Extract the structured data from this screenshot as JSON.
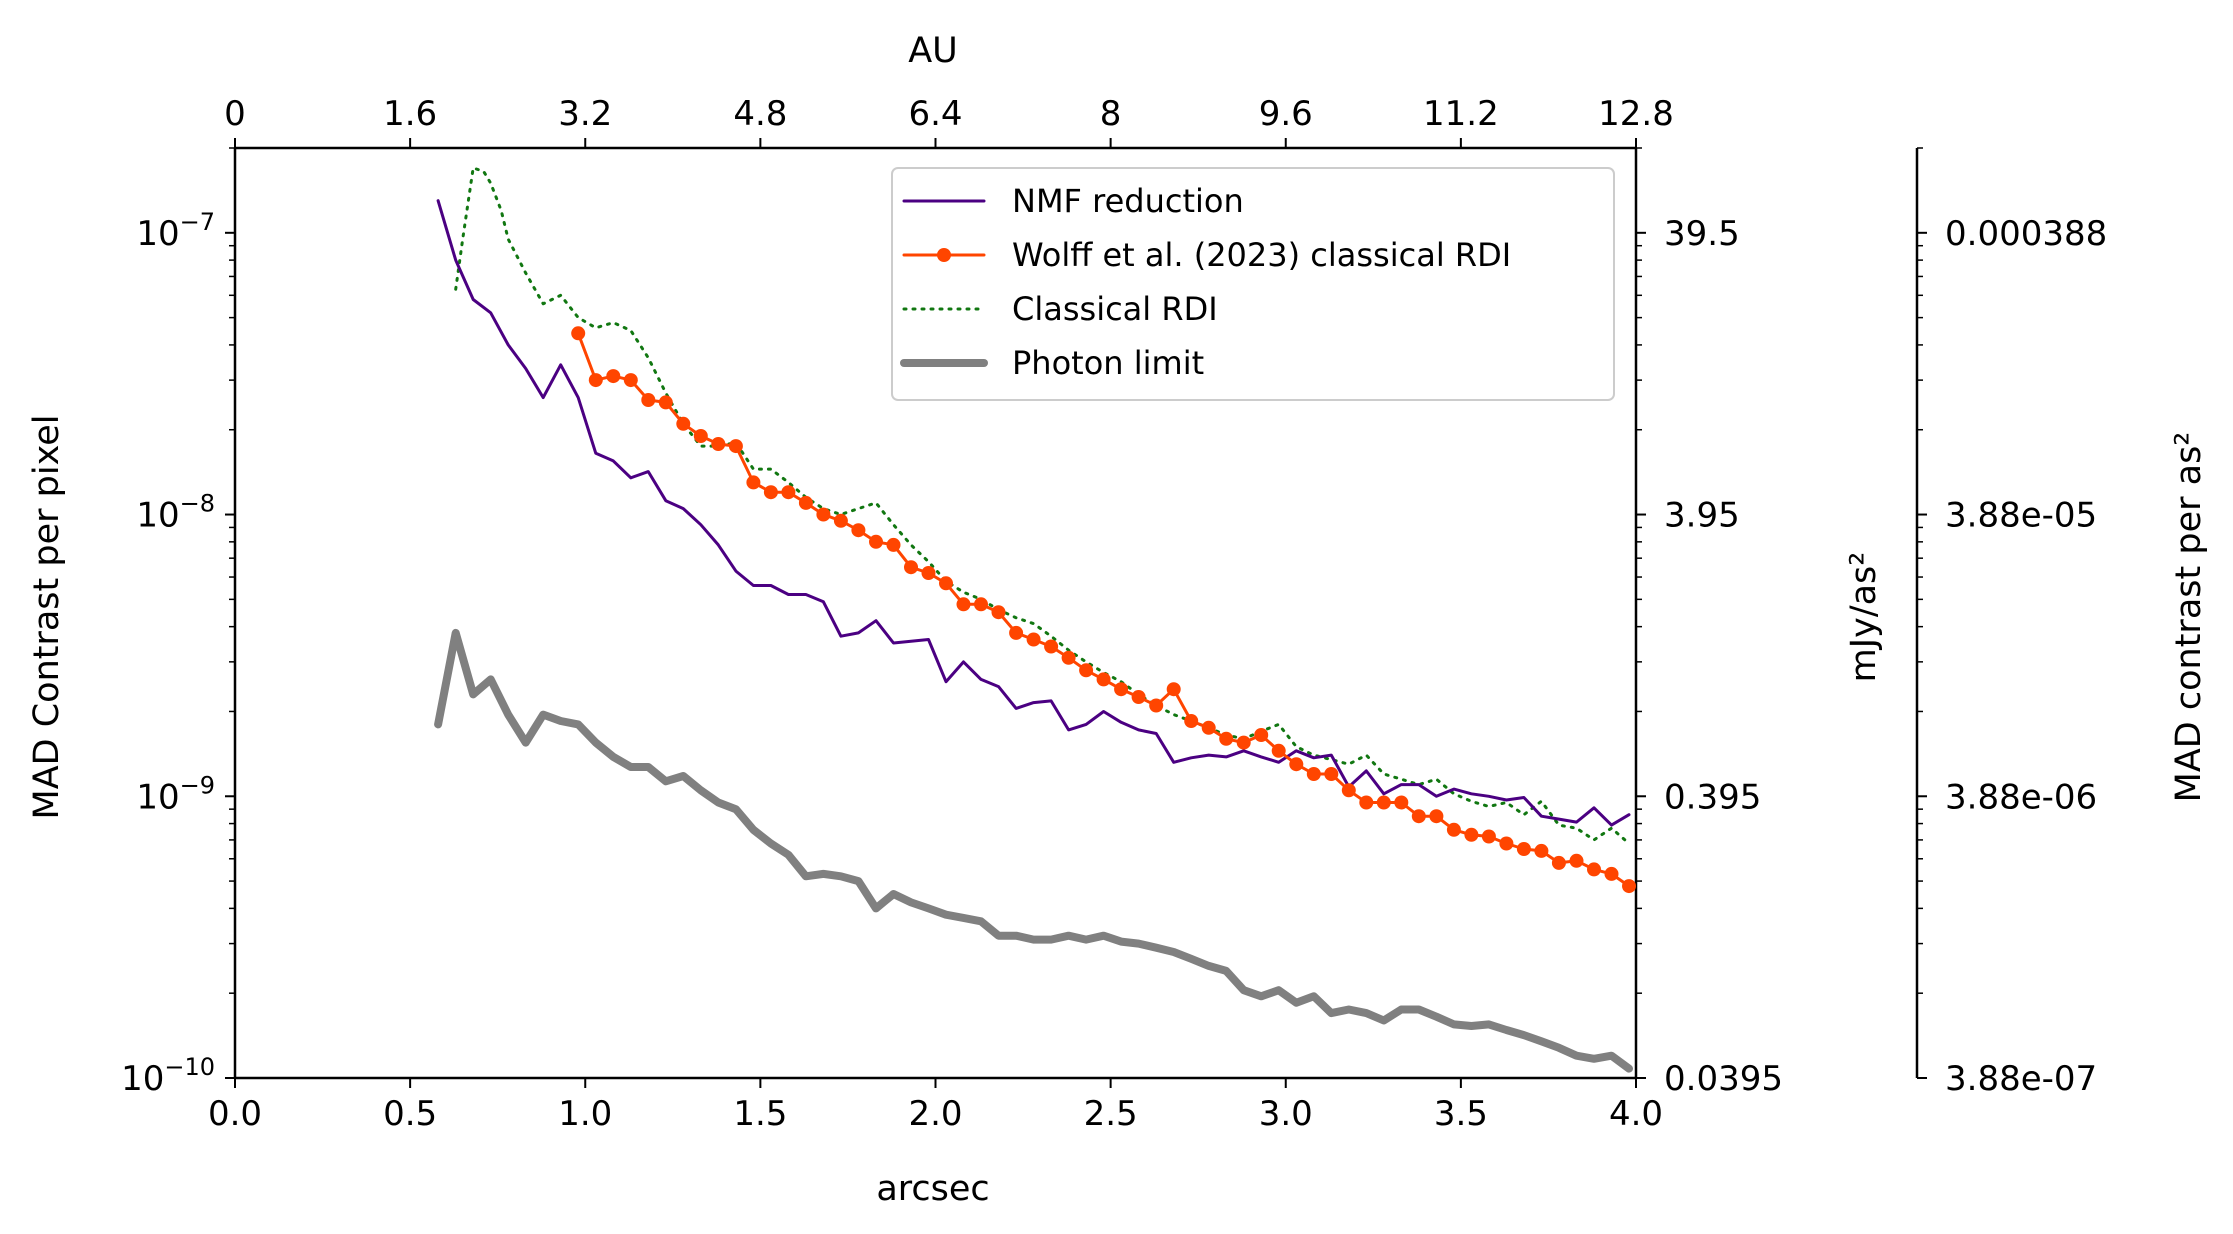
{
  "chart_data": {
    "type": "line",
    "xlabel": "arcsec",
    "ylabel": "MAD Contrast per pixel",
    "top_xlabel": "AU",
    "right_ylabel_1": "mJy/as²",
    "right_ylabel_2": "MAD contrast per as²",
    "xlim": [
      0,
      4
    ],
    "ylim": [
      1e-10,
      2e-07
    ],
    "yscale": "log",
    "grid": false,
    "legend_position": "upper-right",
    "x_ticks": [
      "0.0",
      "0.5",
      "1.0",
      "1.5",
      "2.0",
      "2.5",
      "3.0",
      "3.5",
      "4.0"
    ],
    "top_ticks": [
      "0",
      "1.6",
      "3.2",
      "4.8",
      "6.4",
      "8",
      "9.6",
      "11.2",
      "12.8"
    ],
    "y_ticks": [
      {
        "base": "10",
        "exp": "−10"
      },
      {
        "base": "10",
        "exp": "−9"
      },
      {
        "base": "10",
        "exp": "−8"
      },
      {
        "base": "10",
        "exp": "−7"
      }
    ],
    "right_ticks_1": [
      "0.0395",
      "0.395",
      "3.95",
      "39.5"
    ],
    "right_ticks_2": [
      "3.88e-07",
      "3.88e-06",
      "3.88e-05",
      "0.000388"
    ],
    "series": [
      {
        "name": "NMF reduction",
        "color": "#4b0082",
        "style": "solid",
        "x": [
          0.58,
          0.63,
          0.68,
          0.73,
          0.78,
          0.83,
          0.88,
          0.93,
          0.98,
          1.03,
          1.08,
          1.13,
          1.18,
          1.23,
          1.28,
          1.33,
          1.38,
          1.43,
          1.48,
          1.53,
          1.58,
          1.63,
          1.68,
          1.73,
          1.78,
          1.83,
          1.88,
          1.93,
          1.98,
          2.03,
          2.08,
          2.13,
          2.18,
          2.23,
          2.28,
          2.33,
          2.38,
          2.43,
          2.48,
          2.53,
          2.58,
          2.63,
          2.68,
          2.73,
          2.78,
          2.83,
          2.88,
          2.93,
          2.98,
          3.03,
          3.08,
          3.13,
          3.18,
          3.23,
          3.28,
          3.33,
          3.38,
          3.43,
          3.48,
          3.53,
          3.58,
          3.63,
          3.68,
          3.73,
          3.78,
          3.83,
          3.88,
          3.93,
          3.98
        ],
        "y": [
          1.3e-07,
          8e-08,
          5.8e-08,
          5.2e-08,
          4e-08,
          3.3e-08,
          2.6e-08,
          3.4e-08,
          2.6e-08,
          1.65e-08,
          1.55e-08,
          1.35e-08,
          1.42e-08,
          1.12e-08,
          1.05e-08,
          9.2e-09,
          7.8e-09,
          6.3e-09,
          5.6e-09,
          5.6e-09,
          5.2e-09,
          5.2e-09,
          4.9e-09,
          3.7e-09,
          3.8e-09,
          4.2e-09,
          3.5e-09,
          3.55e-09,
          3.6e-09,
          2.55e-09,
          3e-09,
          2.6e-09,
          2.45e-09,
          2.05e-09,
          2.15e-09,
          2.18e-09,
          1.72e-09,
          1.8e-09,
          2e-09,
          1.83e-09,
          1.72e-09,
          1.67e-09,
          1.32e-09,
          1.37e-09,
          1.4e-09,
          1.38e-09,
          1.45e-09,
          1.38e-09,
          1.32e-09,
          1.45e-09,
          1.37e-09,
          1.4e-09,
          1.08e-09,
          1.23e-09,
          1.02e-09,
          1.1e-09,
          1.1e-09,
          1e-09,
          1.06e-09,
          1.02e-09,
          1e-09,
          9.7e-10,
          9.9e-10,
          8.5e-10,
          8.3e-10,
          8.1e-10,
          9.1e-10,
          7.9e-10,
          8.6e-10
        ]
      },
      {
        "name": "Wolff et al. (2023) classical RDI",
        "color": "#ff4500",
        "style": "solid-markers",
        "x": [
          0.98,
          1.03,
          1.08,
          1.13,
          1.18,
          1.23,
          1.28,
          1.33,
          1.38,
          1.43,
          1.48,
          1.53,
          1.58,
          1.63,
          1.68,
          1.73,
          1.78,
          1.83,
          1.88,
          1.93,
          1.98,
          2.03,
          2.08,
          2.13,
          2.18,
          2.23,
          2.28,
          2.33,
          2.38,
          2.43,
          2.48,
          2.53,
          2.58,
          2.63,
          2.68,
          2.73,
          2.78,
          2.83,
          2.88,
          2.93,
          2.98,
          3.03,
          3.08,
          3.13,
          3.18,
          3.23,
          3.28,
          3.33,
          3.38,
          3.43,
          3.48,
          3.53,
          3.58,
          3.63,
          3.68,
          3.73,
          3.78,
          3.83,
          3.88,
          3.93,
          3.98
        ],
        "y": [
          4.4e-08,
          3e-08,
          3.1e-08,
          3e-08,
          2.55e-08,
          2.5e-08,
          2.1e-08,
          1.9e-08,
          1.78e-08,
          1.75e-08,
          1.3e-08,
          1.2e-08,
          1.2e-08,
          1.1e-08,
          1e-08,
          9.5e-09,
          8.8e-09,
          8e-09,
          7.8e-09,
          6.5e-09,
          6.2e-09,
          5.7e-09,
          4.8e-09,
          4.8e-09,
          4.5e-09,
          3.8e-09,
          3.6e-09,
          3.4e-09,
          3.1e-09,
          2.8e-09,
          2.6e-09,
          2.4e-09,
          2.25e-09,
          2.1e-09,
          2.4e-09,
          1.85e-09,
          1.75e-09,
          1.6e-09,
          1.55e-09,
          1.65e-09,
          1.45e-09,
          1.3e-09,
          1.2e-09,
          1.2e-09,
          1.05e-09,
          9.5e-10,
          9.5e-10,
          9.5e-10,
          8.5e-10,
          8.5e-10,
          7.6e-10,
          7.3e-10,
          7.2e-10,
          6.8e-10,
          6.5e-10,
          6.4e-10,
          5.8e-10,
          5.9e-10,
          5.5e-10,
          5.3e-10,
          4.8e-10
        ]
      },
      {
        "name": "Classical RDI",
        "color": "#117711",
        "style": "dotted",
        "x": [
          0.63,
          0.65,
          0.68,
          0.71,
          0.73,
          0.76,
          0.78,
          0.83,
          0.88,
          0.93,
          0.98,
          1.03,
          1.08,
          1.13,
          1.18,
          1.23,
          1.28,
          1.33,
          1.38,
          1.43,
          1.48,
          1.53,
          1.58,
          1.63,
          1.68,
          1.73,
          1.78,
          1.83,
          1.88,
          1.93,
          1.98,
          2.03,
          2.08,
          2.13,
          2.18,
          2.23,
          2.28,
          2.33,
          2.38,
          2.43,
          2.48,
          2.53,
          2.58,
          2.63,
          2.68,
          2.73,
          2.78,
          2.83,
          2.88,
          2.93,
          2.98,
          3.03,
          3.08,
          3.13,
          3.18,
          3.23,
          3.28,
          3.33,
          3.38,
          3.43,
          3.48,
          3.53,
          3.58,
          3.63,
          3.68,
          3.73,
          3.78,
          3.83,
          3.88,
          3.93,
          3.98
        ],
        "y": [
          6.3e-08,
          9.5e-08,
          1.7e-07,
          1.65e-07,
          1.5e-07,
          1.2e-07,
          9.5e-08,
          7.2e-08,
          5.6e-08,
          6e-08,
          5e-08,
          4.6e-08,
          4.8e-08,
          4.5e-08,
          3.6e-08,
          2.7e-08,
          2.1e-08,
          1.75e-08,
          1.75e-08,
          1.8e-08,
          1.45e-08,
          1.45e-08,
          1.3e-08,
          1.15e-08,
          1.05e-08,
          1e-08,
          1.05e-08,
          1.1e-08,
          9.2e-09,
          7.8e-09,
          6.8e-09,
          5.8e-09,
          5.3e-09,
          5e-09,
          4.6e-09,
          4.3e-09,
          4.1e-09,
          3.7e-09,
          3.3e-09,
          3e-09,
          2.75e-09,
          2.55e-09,
          2.3e-09,
          2.1e-09,
          1.95e-09,
          1.85e-09,
          1.75e-09,
          1.65e-09,
          1.6e-09,
          1.7e-09,
          1.8e-09,
          1.5e-09,
          1.4e-09,
          1.35e-09,
          1.3e-09,
          1.4e-09,
          1.2e-09,
          1.15e-09,
          1.1e-09,
          1.15e-09,
          1.02e-09,
          9.6e-10,
          9.2e-10,
          9.5e-10,
          8.6e-10,
          9.6e-10,
          7.9e-10,
          7.7e-10,
          7e-10,
          7.7e-10,
          6.8e-10
        ]
      },
      {
        "name": "Photon limit",
        "color": "#808080",
        "style": "thick",
        "x": [
          0.58,
          0.63,
          0.68,
          0.73,
          0.78,
          0.83,
          0.88,
          0.93,
          0.98,
          1.03,
          1.08,
          1.13,
          1.18,
          1.23,
          1.28,
          1.33,
          1.38,
          1.43,
          1.48,
          1.53,
          1.58,
          1.63,
          1.68,
          1.73,
          1.78,
          1.83,
          1.88,
          1.93,
          1.98,
          2.03,
          2.08,
          2.13,
          2.18,
          2.23,
          2.28,
          2.33,
          2.38,
          2.43,
          2.48,
          2.53,
          2.58,
          2.63,
          2.68,
          2.73,
          2.78,
          2.83,
          2.88,
          2.93,
          2.98,
          3.03,
          3.08,
          3.13,
          3.18,
          3.23,
          3.28,
          3.33,
          3.38,
          3.43,
          3.48,
          3.53,
          3.58,
          3.63,
          3.68,
          3.73,
          3.78,
          3.83,
          3.88,
          3.93,
          3.98
        ],
        "y": [
          1.8e-09,
          3.8e-09,
          2.3e-09,
          2.6e-09,
          1.95e-09,
          1.55e-09,
          1.95e-09,
          1.85e-09,
          1.8e-09,
          1.55e-09,
          1.38e-09,
          1.27e-09,
          1.27e-09,
          1.13e-09,
          1.18e-09,
          1.05e-09,
          9.5e-10,
          9e-10,
          7.6e-10,
          6.8e-10,
          6.2e-10,
          5.2e-10,
          5.3e-10,
          5.2e-10,
          5e-10,
          4e-10,
          4.5e-10,
          4.2e-10,
          4e-10,
          3.8e-10,
          3.7e-10,
          3.6e-10,
          3.2e-10,
          3.2e-10,
          3.1e-10,
          3.1e-10,
          3.2e-10,
          3.1e-10,
          3.2e-10,
          3.05e-10,
          3e-10,
          2.9e-10,
          2.8e-10,
          2.65e-10,
          2.5e-10,
          2.4e-10,
          2.05e-10,
          1.95e-10,
          2.05e-10,
          1.85e-10,
          1.95e-10,
          1.7e-10,
          1.75e-10,
          1.7e-10,
          1.6e-10,
          1.75e-10,
          1.75e-10,
          1.65e-10,
          1.55e-10,
          1.53e-10,
          1.55e-10,
          1.48e-10,
          1.42e-10,
          1.35e-10,
          1.28e-10,
          1.2e-10,
          1.17e-10,
          1.2e-10,
          1.08e-10
        ]
      }
    ]
  }
}
